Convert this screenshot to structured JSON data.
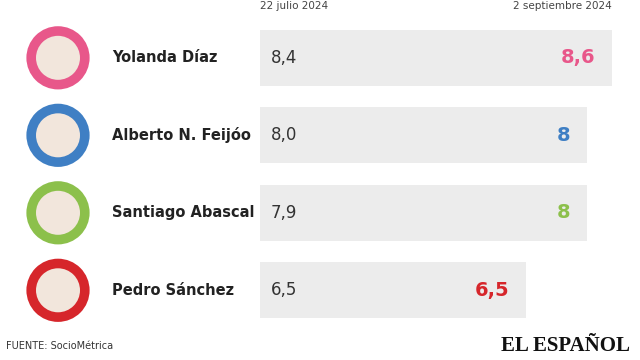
{
  "chart_data": {
    "type": "bar",
    "orientation": "horizontal",
    "categories": [
      "Yolanda Díaz",
      "Alberto N. Feijóo",
      "Santiago Abascal",
      "Pedro Sánchez"
    ],
    "series": [
      {
        "name": "22 julio 2024",
        "type": "text",
        "values": [
          8.4,
          8.0,
          7.9,
          6.5
        ],
        "value_labels": [
          "8,4",
          "8,0",
          "7,9",
          "6,5"
        ],
        "color": "#333333"
      },
      {
        "name": "2 septiembre 2024",
        "type": "bar",
        "values": [
          8.6,
          8,
          8,
          6.5
        ],
        "value_labels": [
          "8,6",
          "8",
          "8",
          "6,5"
        ],
        "color": "#ececec",
        "colors": [
          "#e8578a",
          "#3f7fc4",
          "#8cc04b",
          "#d6262b"
        ]
      }
    ],
    "data_labels": true,
    "tick_labels": false,
    "grid": false,
    "source": "FUENTE: SocioMétrica",
    "logo": "EL ESPAÑOL"
  }
}
